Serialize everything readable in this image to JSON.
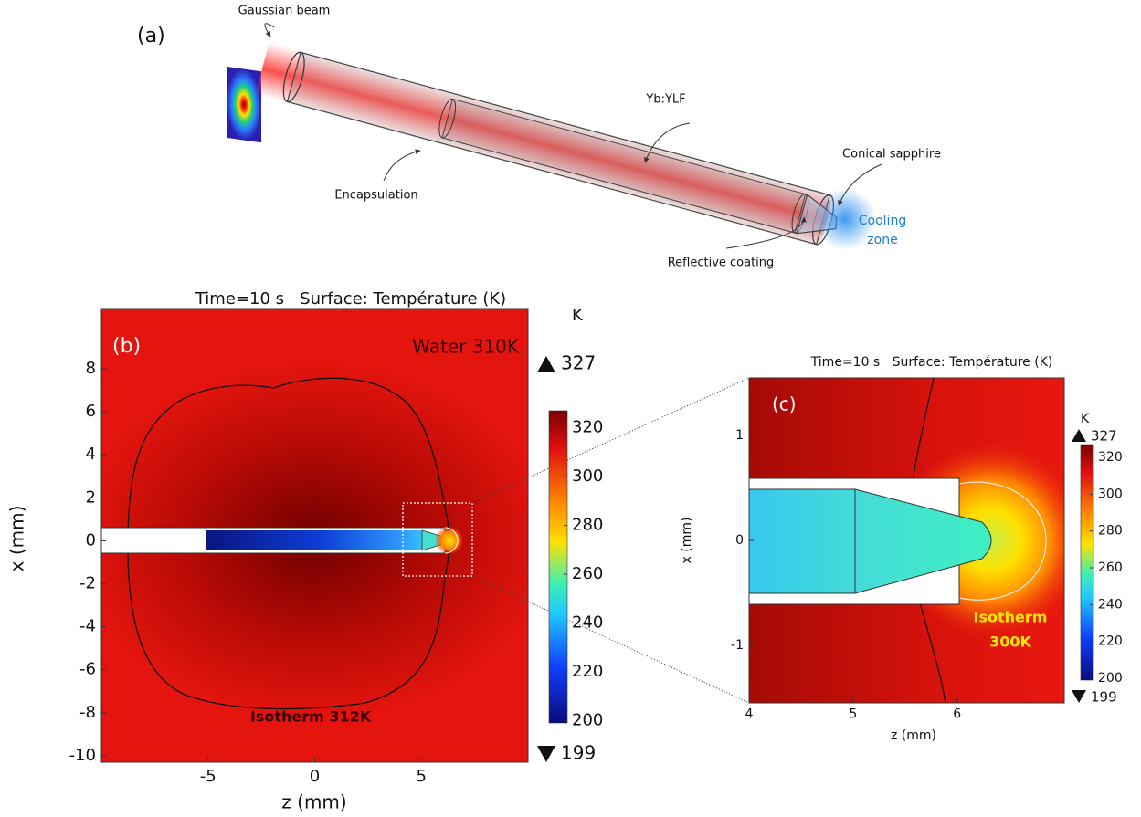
{
  "panel_a": {
    "label": "(a)",
    "gaussian_beam": "Gaussian beam",
    "crystal": "Yb:YLF",
    "conical_sapphire": "Conical sapphire",
    "encapsulation": "Encapsulation",
    "cooling_zone": [
      "Cooling",
      "zone"
    ],
    "reflective_coating": "Reflective coating"
  },
  "panel_b": {
    "title": "Time=10 s   Surface: Température (K)",
    "label": "(b)",
    "medium": "Water 310K",
    "isotherm": "Isotherm 312K",
    "x_label": "z (mm)",
    "y_label": "x (mm)",
    "xlim": [
      -10,
      10
    ],
    "ylim": [
      -10.3,
      10.8
    ],
    "xticks": [
      -5,
      0,
      5
    ],
    "yticks": [
      8,
      6,
      4,
      2,
      0,
      -2,
      -4,
      -6,
      -8,
      -10
    ],
    "colorbar": {
      "unit": "K",
      "max": 327,
      "min": 199,
      "ticks": [
        320,
        300,
        280,
        260,
        240,
        220,
        200
      ]
    }
  },
  "panel_c": {
    "title": "Time=10 s   Surface: Température (K)",
    "label": "(c)",
    "isotherm": [
      "Isotherm",
      "300K"
    ],
    "x_label": "z (mm)",
    "y_label": "x (mm)",
    "xlim": [
      4,
      7.03
    ],
    "ylim": [
      -1.55,
      1.55
    ],
    "xticks": [
      4,
      5,
      6
    ],
    "yticks": [
      1,
      0,
      -1
    ],
    "colorbar": {
      "unit": "K",
      "max": 327,
      "min": 199,
      "ticks": [
        320,
        300,
        280,
        260,
        240,
        220,
        200
      ]
    }
  }
}
